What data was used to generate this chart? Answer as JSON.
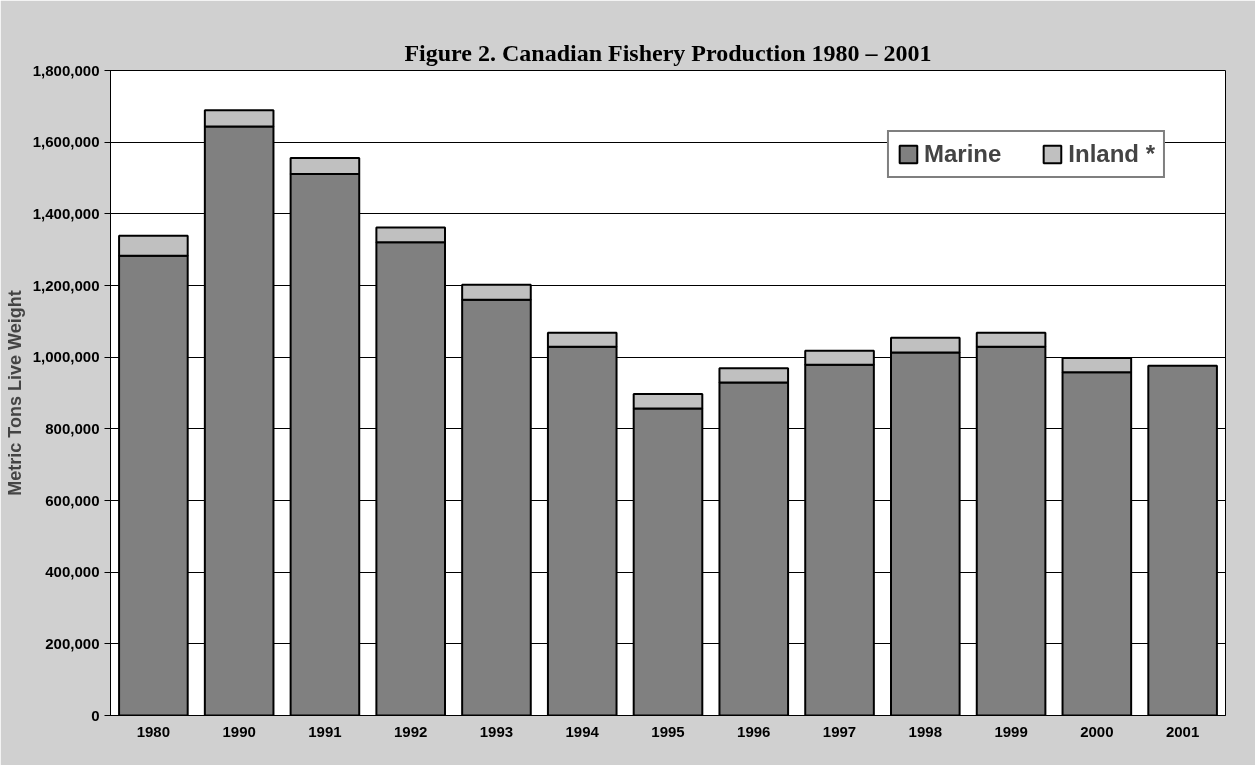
{
  "chart_data": {
    "type": "bar",
    "stacked": true,
    "title": "Figure 2. Canadian Fishery Production 1980 – 2001",
    "ylabel": "Metric Tons Live Weight",
    "categories": [
      "1980",
      "1990",
      "1991",
      "1992",
      "1993",
      "1994",
      "1995",
      "1996",
      "1997",
      "1998",
      "1999",
      "2000",
      "2001"
    ],
    "series": [
      {
        "name": "Marine",
        "color": "#808080",
        "values": [
          1283000,
          1644000,
          1511000,
          1321000,
          1160000,
          1029000,
          857000,
          929000,
          979000,
          1013000,
          1029000,
          958000,
          976000
        ]
      },
      {
        "name": "Inland *",
        "color": "#c0c0c0",
        "values": [
          56000,
          45000,
          45000,
          41000,
          42000,
          39000,
          40000,
          40000,
          39000,
          41000,
          39000,
          40000,
          null
        ]
      }
    ],
    "ylim": [
      0,
      1800000
    ],
    "yticks": [
      {
        "value": 0,
        "label": "0"
      },
      {
        "value": 200000,
        "label": "200,000"
      },
      {
        "value": 400000,
        "label": "400,000"
      },
      {
        "value": 600000,
        "label": "600,000"
      },
      {
        "value": 800000,
        "label": "800,000"
      },
      {
        "value": 1000000,
        "label": "1,000,000"
      },
      {
        "value": 1200000,
        "label": "1,200,000"
      },
      {
        "value": 1400000,
        "label": "1,400,000"
      },
      {
        "value": 1600000,
        "label": "1,600,000"
      },
      {
        "value": 1800000,
        "label": "1,800,000"
      }
    ],
    "grid": "y",
    "legend": "top right"
  }
}
